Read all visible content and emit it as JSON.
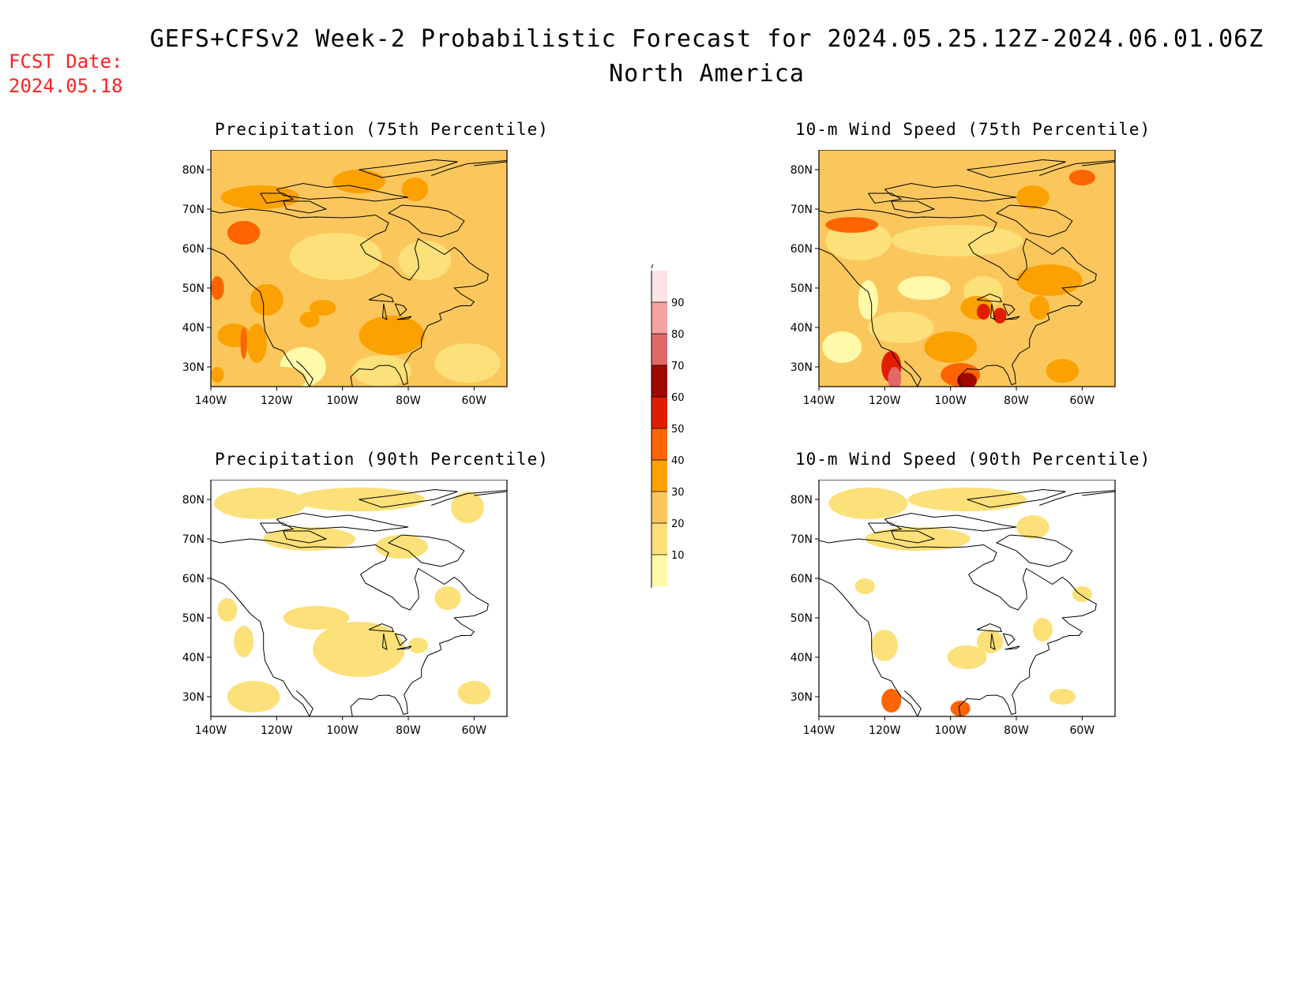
{
  "header": {
    "title": "GEFS+CFSv2 Week-2 Probabilistic Forecast for 2024.05.25.12Z-2024.06.01.06Z",
    "subtitle": "North America"
  },
  "fcst_date": {
    "label": "FCST Date:",
    "value": "2024.05.18"
  },
  "panels": [
    {
      "title": "Precipitation (75th Percentile)"
    },
    {
      "title": "10-m Wind Speed (75th Percentile)"
    },
    {
      "title": "Precipitation (90th Percentile)"
    },
    {
      "title": "10-m Wind Speed (90th Percentile)"
    }
  ],
  "axes": {
    "lat_labels": [
      "80N",
      "70N",
      "60N",
      "50N",
      "40N",
      "30N"
    ],
    "lon_labels": [
      "140W",
      "120W",
      "100W",
      "80W",
      "60W"
    ]
  },
  "colorbar": {
    "levels": [
      "10",
      "20",
      "30",
      "40",
      "50",
      "60",
      "70",
      "80",
      "90"
    ],
    "colors": [
      "#fffaaa",
      "#fce079",
      "#fbc75c",
      "#fca102",
      "#fd6402",
      "#e11d00",
      "#a10800",
      "#e26767",
      "#f4a3a3",
      "#fde4e4"
    ]
  }
}
